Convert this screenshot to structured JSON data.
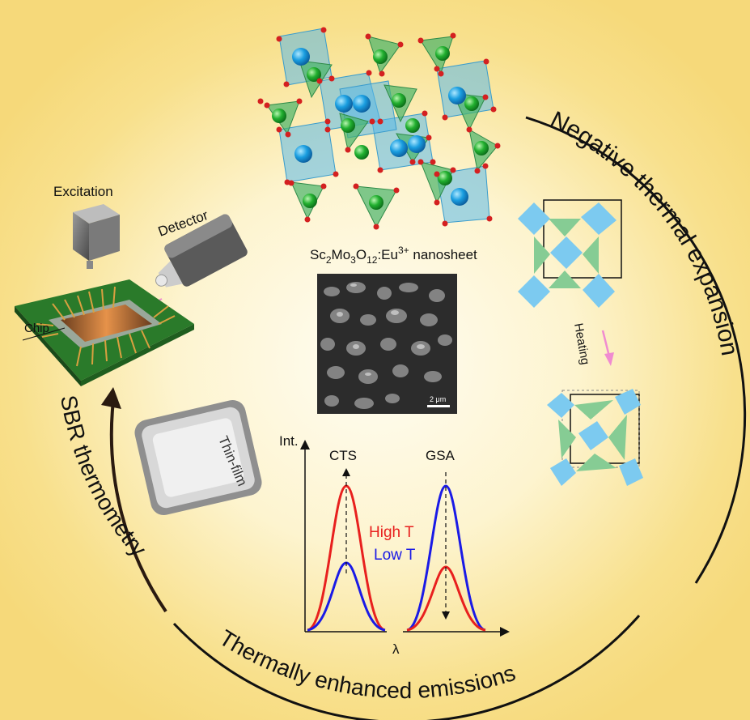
{
  "labels": {
    "excitation": "Excitation",
    "detector": "Detector",
    "chip": "Chip",
    "thin_film": "Thin-film",
    "material_main": "Sc",
    "material_sub1": "2",
    "material_mo": "Mo",
    "material_sub2": "3",
    "material_o": "O",
    "material_sub3": "12",
    "material_eu": ":Eu",
    "material_sup": "3+",
    "material_tail": " nanosheet",
    "scale_bar": "2 μm",
    "heating": "Heating",
    "arc_negative_thermal_expansion": "Negative thermal expansion",
    "arc_thermally_enhanced": "Thermally enhanced emissions",
    "arc_sbr": "SBR thermometry"
  },
  "spectrum": {
    "y_axis": "Int.",
    "x_axis": "λ",
    "peak_left": "CTS",
    "peak_right": "GSA",
    "legend_high": "High T",
    "legend_low": "Low T"
  },
  "colors": {
    "high_t": "#e8201e",
    "low_t": "#1a1ae6",
    "octahedron": "#5ab8e8",
    "tetrahedron": "#49b36a",
    "arrow": "#2a1a10",
    "heating_arrow": "#f08bd0"
  },
  "icons": {
    "excitation": "excitation-source-icon",
    "detector": "detector-icon",
    "chip": "chip-board-icon"
  }
}
